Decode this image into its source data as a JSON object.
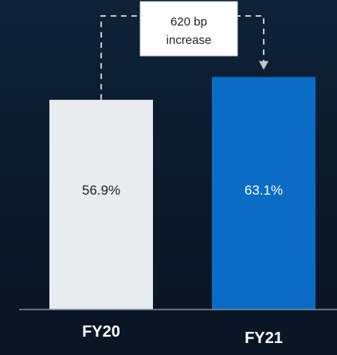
{
  "chart_data": {
    "type": "bar",
    "categories": [
      "FY20",
      "FY21"
    ],
    "values": [
      56.9,
      63.1
    ],
    "value_labels": [
      "56.9%",
      "63.1%"
    ],
    "unit": "%",
    "colors": {
      "bars": [
        "#e8ecef",
        "#0a6cc4"
      ],
      "bar_label": [
        "#222222",
        "#ffffff"
      ],
      "category_label": "#ffffff",
      "baseline": "#7f8c98",
      "connector": "#c2c7cc",
      "callout_fill": "#ffffff",
      "callout_text": "#222222"
    },
    "annotation": {
      "line1": "620 bp",
      "line2": "increase"
    },
    "grid": false,
    "legend": "none"
  }
}
